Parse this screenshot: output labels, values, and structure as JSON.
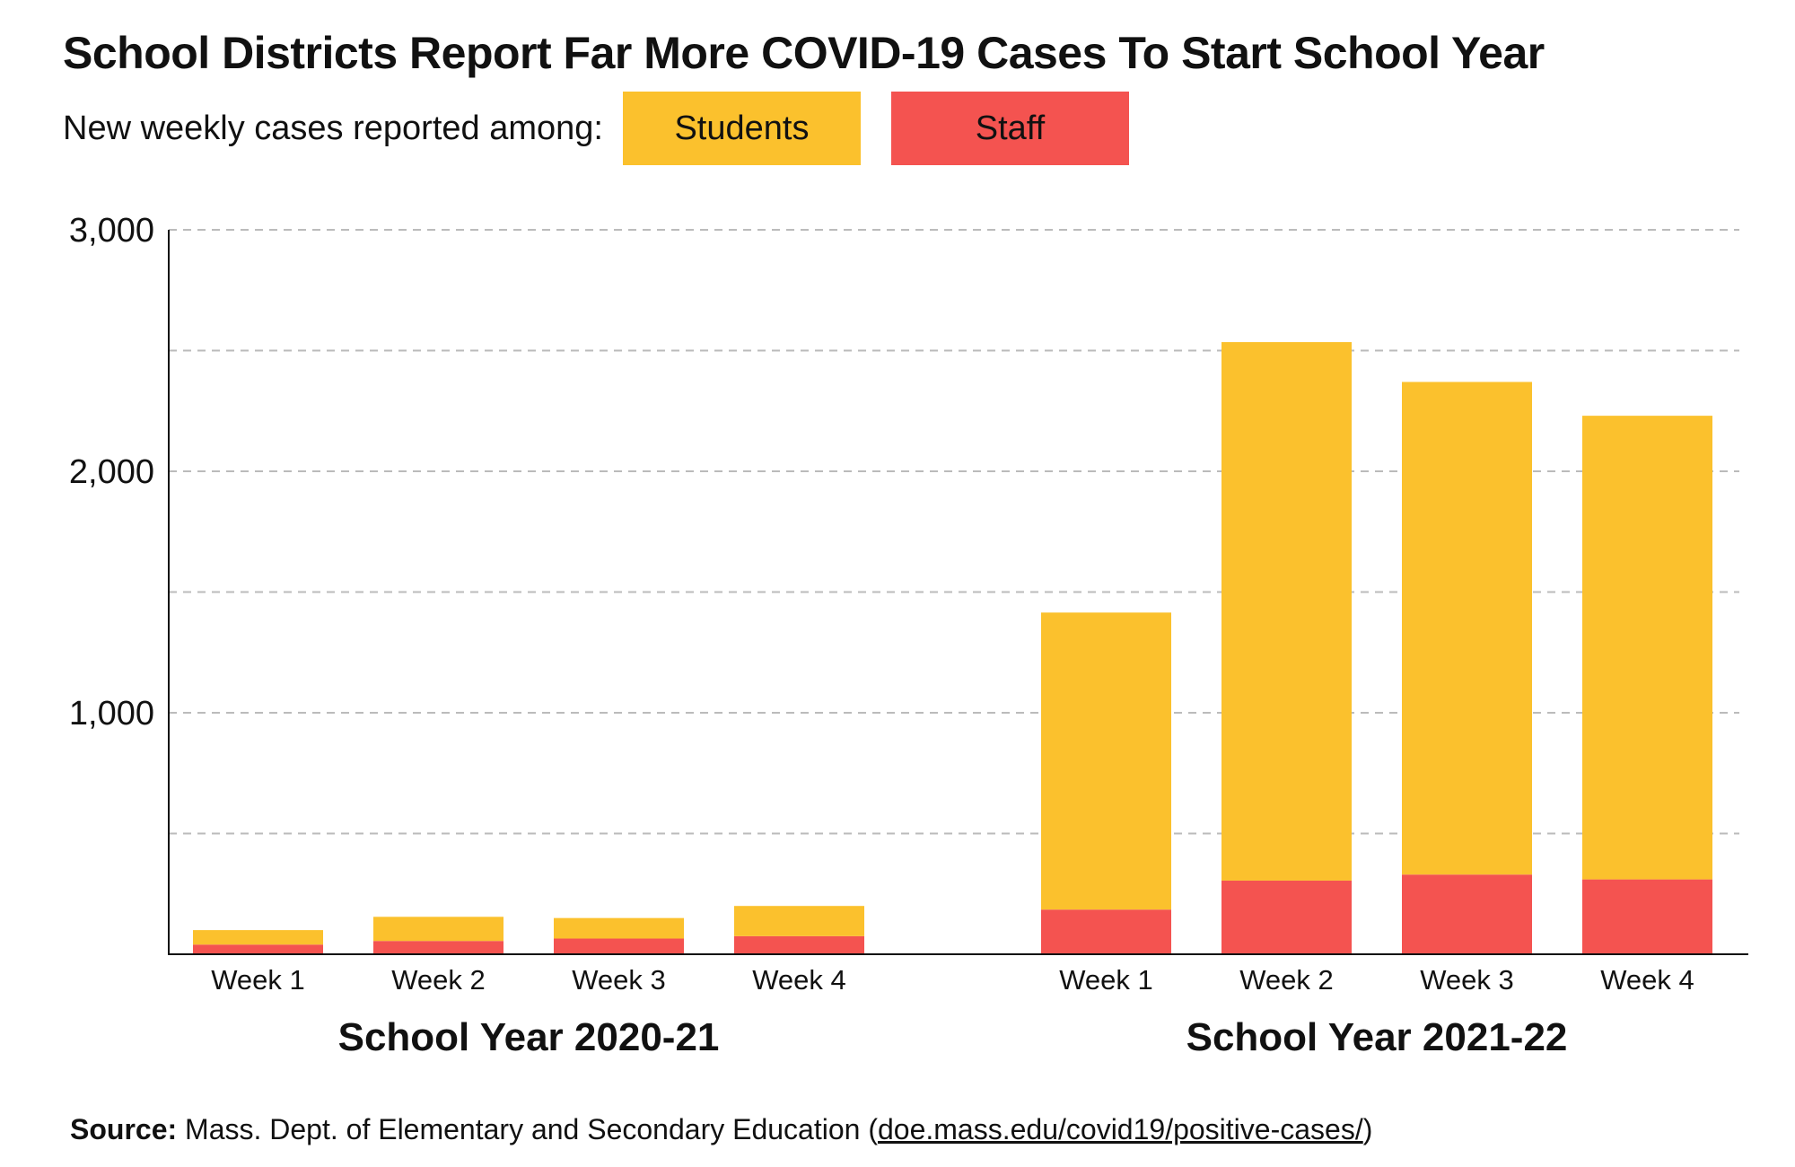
{
  "title": "School Districts Report Far More COVID-19 Cases To Start School Year",
  "subtitle": "New weekly cases reported among:",
  "source": {
    "label": "Source:",
    "text": "Mass. Dept. of Elementary and Secondary Education (",
    "link": "doe.mass.edu/covid19/positive-cases/",
    "close": ")"
  },
  "colors": {
    "students": "#FBC12D",
    "staff": "#F45350",
    "grid": "#bbbbbb",
    "axis": "#111111"
  },
  "chart_data": {
    "type": "bar",
    "stacked": true,
    "ylim": [
      0,
      3000
    ],
    "yticks": [
      0,
      1000,
      2000,
      3000
    ],
    "ytick_labels": [
      "",
      "1,000",
      "2,000",
      "3,000"
    ],
    "grid": true,
    "legend_placement": "top-left",
    "series": [
      {
        "name": "Students",
        "color": "#FBC12D",
        "values": [
          60,
          100,
          85,
          125,
          1230,
          2230,
          2040,
          1920
        ]
      },
      {
        "name": "Staff",
        "color": "#F45350",
        "values": [
          40,
          55,
          65,
          75,
          185,
          305,
          330,
          310
        ]
      }
    ],
    "groups": [
      {
        "label": "School Year 2020-21",
        "categories": [
          "Week 1",
          "Week 2",
          "Week 3",
          "Week 4"
        ]
      },
      {
        "label": "School Year 2021-22",
        "categories": [
          "Week 1",
          "Week 2",
          "Week 3",
          "Week 4"
        ]
      }
    ]
  }
}
